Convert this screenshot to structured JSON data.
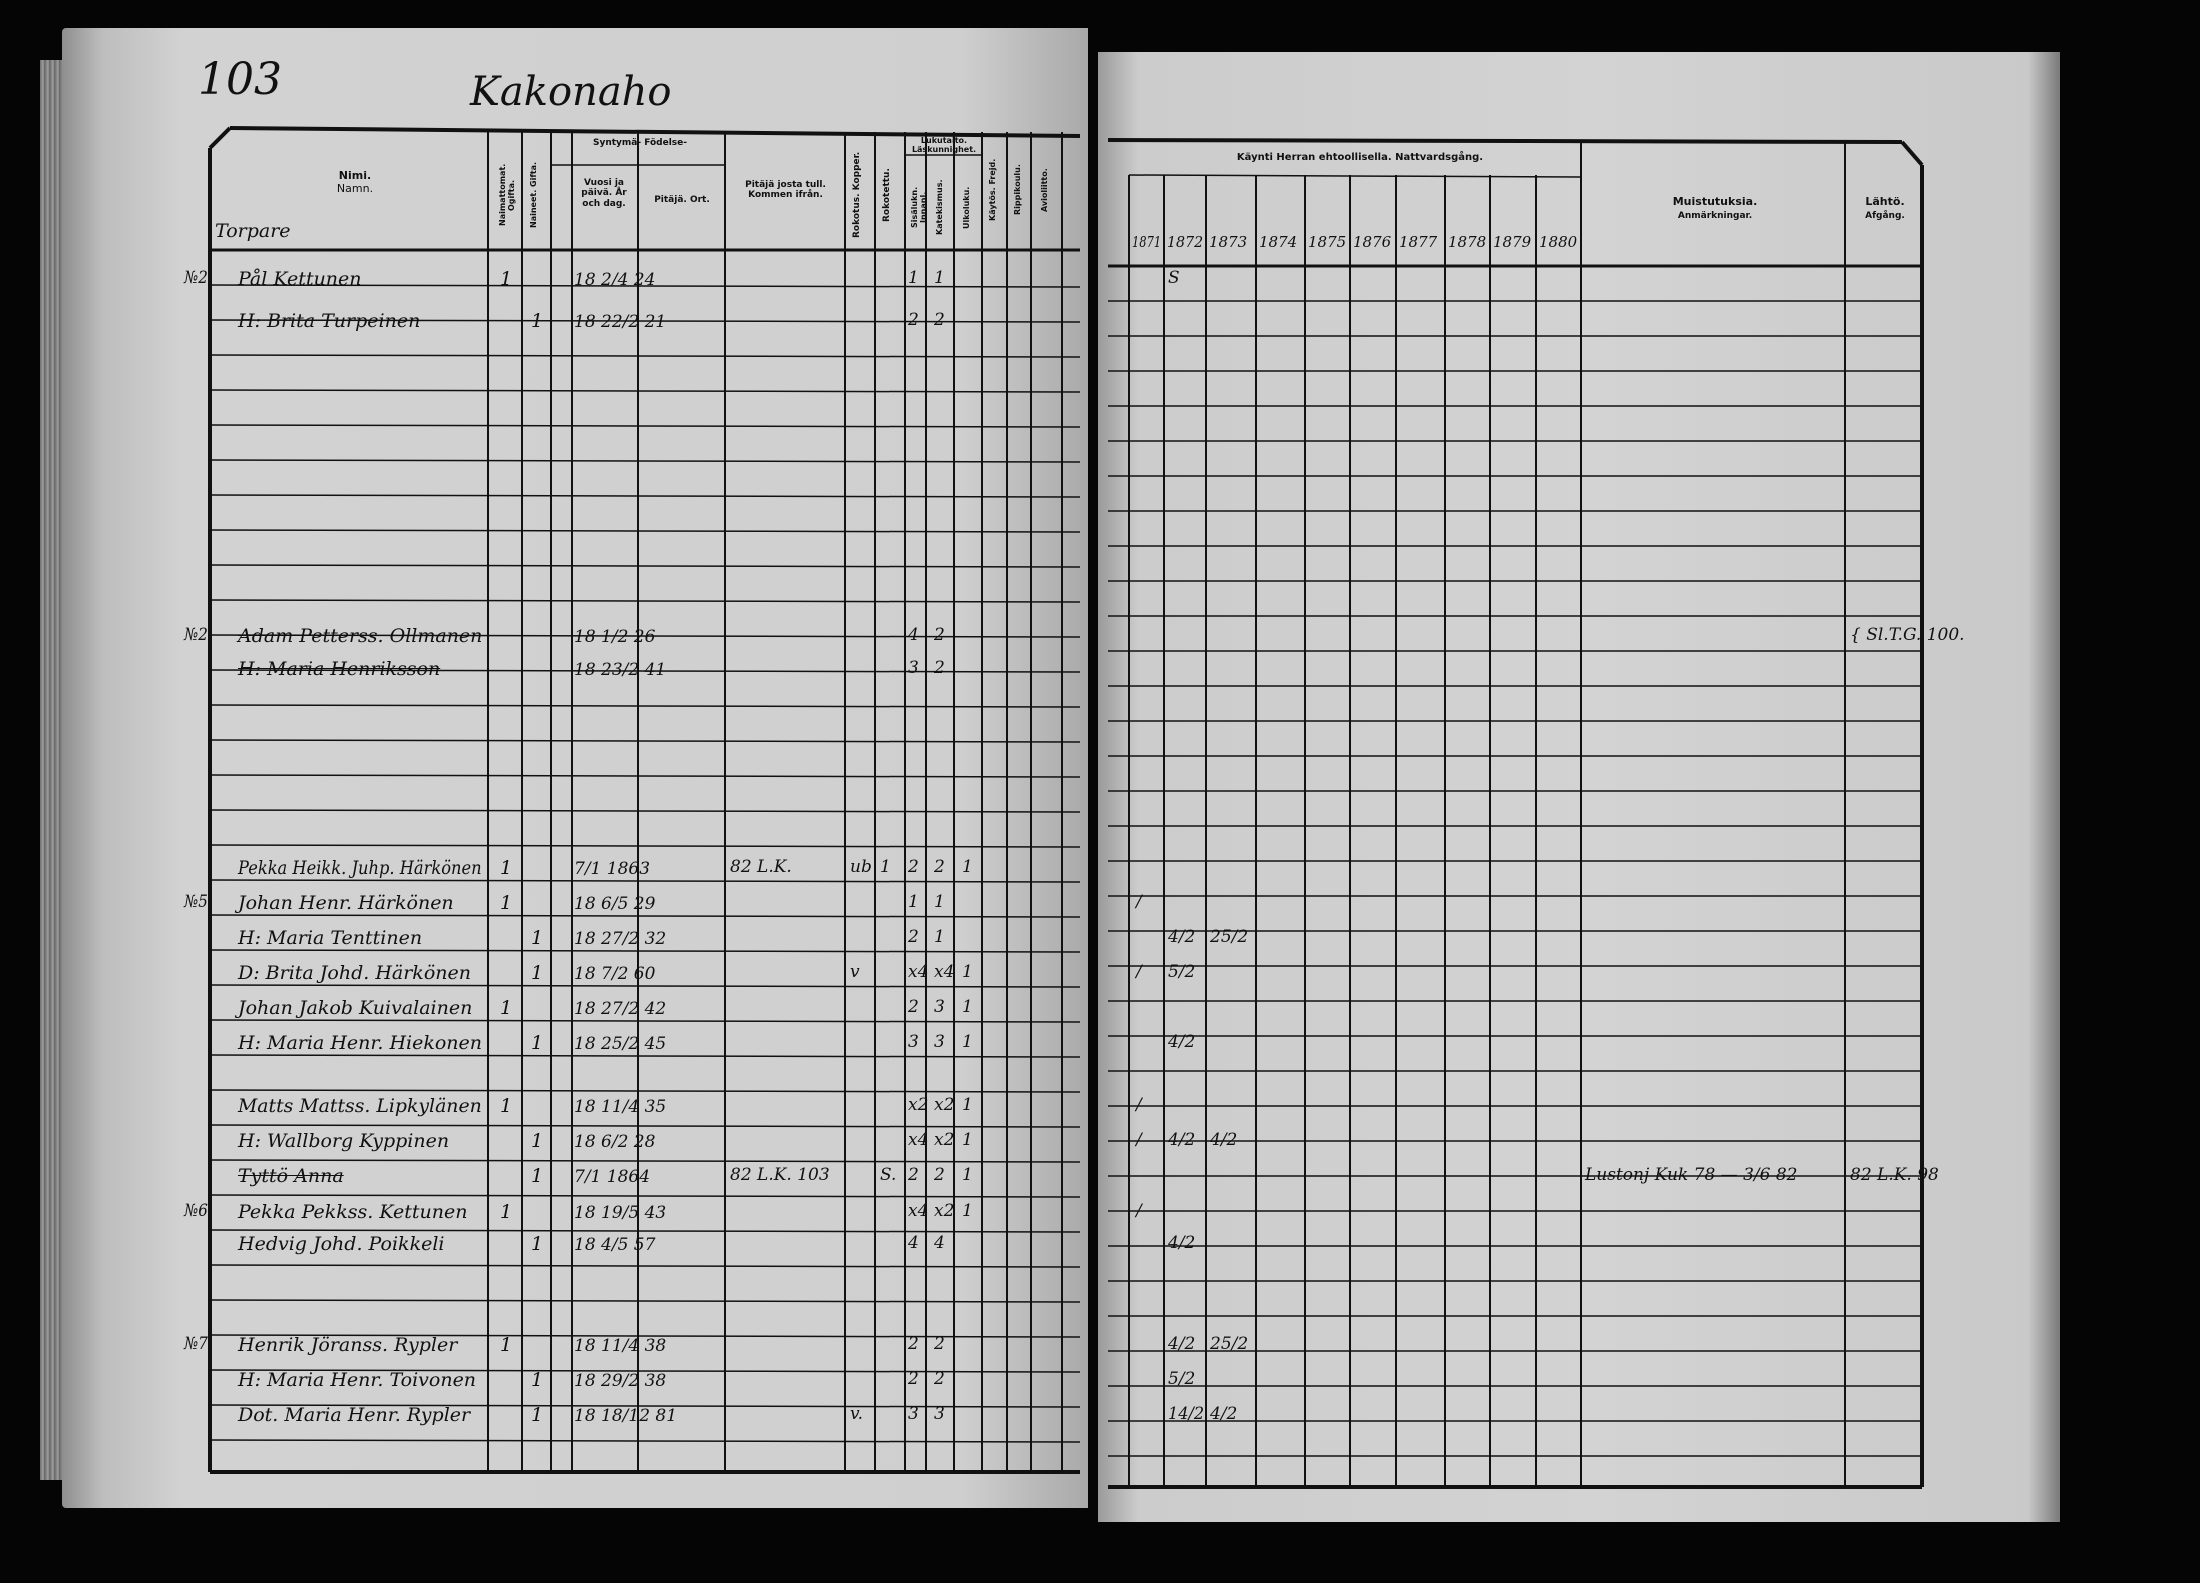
{
  "left_page": {
    "page_number": "103",
    "title": "Kakonaho",
    "section_label": "Torpare",
    "headers": {
      "name": "Nimi.",
      "name_sv": "Namn.",
      "unmarried": "Naimattomat. Ogifta.",
      "married": "Naineet. Gifta.",
      "birth_group": "Syntymä- Födelse-",
      "birth_date": "Vuosi ja päivä. År och dag.",
      "birth_place": "Pitäjä. Ort.",
      "came_from": "Pitäjä josta tull. Kommen ifrån.",
      "vaccinated": "Rokotus. Kopper.",
      "vaccine": "Rokotettu.",
      "literacy_group": "Lukutaito. Läskunnighet.",
      "literacy_inner": "Sisälukn. Innanl.",
      "literacy_cat": "Katekismus.",
      "literacy_outer": "Ulkoluku.",
      "conduct": "Käytös. Frejd.",
      "confirmed": "Rippikoulu.",
      "married_col": "Avioliitto."
    },
    "entries": [
      {
        "no": "№2",
        "name": "Pål Kettunen",
        "m1": "1",
        "m2": "",
        "birth": "18 2/4 24",
        "from": "",
        "v1": "",
        "v2": "",
        "r1": "1",
        "r2": "1",
        "r3": ""
      },
      {
        "no": "",
        "name": "H: Brita Turpeinen",
        "m1": "",
        "m2": "1",
        "birth": "18 22/2 21",
        "from": "",
        "v1": "",
        "v2": "",
        "r1": "2",
        "r2": "2",
        "r3": ""
      },
      {
        "no": "№2",
        "name": "Adam Petterss. Ollmanen",
        "m1": "",
        "m2": "",
        "birth": "18 1/2 26",
        "from": "",
        "v1": "",
        "v2": "",
        "r1": "4",
        "r2": "2",
        "r3": ""
      },
      {
        "no": "",
        "name": "H: Maria Henriksson",
        "m1": "",
        "m2": "",
        "birth": "18 23/2 41",
        "from": "",
        "v1": "",
        "v2": "",
        "r1": "3",
        "r2": "2",
        "r3": ""
      },
      {
        "no": "",
        "name": "Pekka Heikk. Juhp. Härkönen",
        "m1": "1",
        "m2": "",
        "birth": "7/1 1863",
        "from": "82 L.K.",
        "v1": "ub",
        "v2": "1",
        "r1": "2",
        "r2": "2",
        "r3": "1"
      },
      {
        "no": "№5",
        "name": "Johan Henr. Härkönen",
        "m1": "1",
        "m2": "",
        "birth": "18 6/5 29",
        "from": "",
        "v1": "",
        "v2": "",
        "r1": "1",
        "r2": "1",
        "r3": ""
      },
      {
        "no": "",
        "name": "H: Maria Tenttinen",
        "m1": "",
        "m2": "1",
        "birth": "18 27/2 32",
        "from": "",
        "v1": "",
        "v2": "",
        "r1": "2",
        "r2": "1",
        "r3": ""
      },
      {
        "no": "",
        "name": "D: Brita Johd. Härkönen",
        "m1": "",
        "m2": "1",
        "birth": "18 7/2 60",
        "from": "",
        "v1": "v",
        "v2": "",
        "r1": "x4",
        "r2": "x4",
        "r3": "1"
      },
      {
        "no": "",
        "name": "Johan Jakob Kuivalainen",
        "m1": "1",
        "m2": "",
        "birth": "18 27/2 42",
        "from": "",
        "v1": "",
        "v2": "",
        "r1": "2",
        "r2": "3",
        "r3": "1"
      },
      {
        "no": "",
        "name": "H: Maria Henr. Hiekonen",
        "m1": "",
        "m2": "1",
        "birth": "18 25/2 45",
        "from": "",
        "v1": "",
        "v2": "",
        "r1": "3",
        "r2": "3",
        "r3": "1"
      },
      {
        "no": "",
        "name": "Matts Mattss. Lipkylänen",
        "m1": "1",
        "m2": "",
        "birth": "18 11/4 35",
        "from": "",
        "v1": "",
        "v2": "",
        "r1": "x2",
        "r2": "x2",
        "r3": "1"
      },
      {
        "no": "",
        "name": "H: Wallborg Kyppinen",
        "m1": "",
        "m2": "1",
        "birth": "18 6/2 28",
        "from": "",
        "v1": "",
        "v2": "",
        "r1": "x4",
        "r2": "x2",
        "r3": "1"
      },
      {
        "no": "",
        "name": "Tyttö Anna",
        "m1": "",
        "m2": "1",
        "birth": "7/1 1864",
        "from": "82 L.K. 103",
        "v1": "",
        "v2": "S.",
        "r1": "2",
        "r2": "2",
        "r3": "1"
      },
      {
        "no": "№6",
        "name": "Pekka Pekkss. Kettunen",
        "m1": "1",
        "m2": "",
        "birth": "18 19/5 43",
        "from": "",
        "v1": "",
        "v2": "",
        "r1": "x4",
        "r2": "x2",
        "r3": "1"
      },
      {
        "no": "",
        "name": "Hedvig Johd. Poikkeli",
        "m1": "",
        "m2": "1",
        "birth": "18 4/5 57",
        "from": "",
        "v1": "",
        "v2": "",
        "r1": "4",
        "r2": "4",
        "r3": ""
      },
      {
        "no": "№7",
        "name": "Henrik Jöranss. Rypler",
        "m1": "1",
        "m2": "",
        "birth": "18 11/4 38",
        "from": "",
        "v1": "",
        "v2": "",
        "r1": "2",
        "r2": "2",
        "r3": ""
      },
      {
        "no": "",
        "name": "H: Maria Henr. Toivonen",
        "m1": "",
        "m2": "1",
        "birth": "18 29/2 38",
        "from": "",
        "v1": "",
        "v2": "",
        "r1": "2",
        "r2": "2",
        "r3": ""
      },
      {
        "no": "",
        "name": "Dot. Maria Henr. Rypler",
        "m1": "",
        "m2": "1",
        "birth": "18 18/12 81",
        "from": "",
        "v1": "v.",
        "v2": "",
        "r1": "3",
        "r2": "3",
        "r3": ""
      }
    ]
  },
  "right_page": {
    "headers": {
      "communion": "Käynti Herran ehtoollisella. Nattvardsgång.",
      "remarks": "Muistutuksia.",
      "remarks_sv": "Anmärkningar.",
      "departure": "Lähtö.",
      "departure_sv": "Afgång."
    },
    "years": [
      "1871",
      "1872",
      "1873",
      "1874",
      "1875",
      "1876",
      "1877",
      "1878",
      "1879",
      "1880"
    ],
    "marks": [
      {
        "c1871": "",
        "c1872": "S",
        "c1873": "",
        "remark": "",
        "departure": ""
      },
      {
        "c1871": "",
        "c1872": "",
        "c1873": "",
        "remark": "",
        "departure": ""
      },
      {
        "c1871": "",
        "c1872": "",
        "c1873": "",
        "remark": "",
        "departure": "{ Sl.T.G. 100."
      },
      {
        "c1871": "",
        "c1872": "",
        "c1873": "",
        "remark": "",
        "departure": ""
      },
      {
        "c1871": "",
        "c1872": "",
        "c1873": "",
        "remark": "",
        "departure": ""
      },
      {
        "c1871": "/",
        "c1872": "",
        "c1873": "",
        "remark": "",
        "departure": ""
      },
      {
        "c1871": "",
        "c1872": "4/2",
        "c1873": "25/2",
        "remark": "",
        "departure": ""
      },
      {
        "c1871": "/",
        "c1872": "5/2",
        "c1873": "",
        "remark": "",
        "departure": ""
      },
      {
        "c1871": "",
        "c1872": "",
        "c1873": "",
        "remark": "",
        "departure": ""
      },
      {
        "c1871": "",
        "c1872": "4/2",
        "c1873": "",
        "remark": "",
        "departure": ""
      },
      {
        "c1871": "/",
        "c1872": "",
        "c1873": "",
        "remark": "",
        "departure": ""
      },
      {
        "c1871": "/",
        "c1872": "4/2",
        "c1873": "4/2",
        "remark": "",
        "departure": ""
      },
      {
        "c1871": "",
        "c1872": "",
        "c1873": "",
        "remark": "Lustonj Kuk 78 — 3/6 82",
        "departure": "82 L.K. 98"
      },
      {
        "c1871": "/",
        "c1872": "",
        "c1873": "",
        "remark": "",
        "departure": ""
      },
      {
        "c1871": "",
        "c1872": "4/2",
        "c1873": "",
        "remark": "",
        "departure": ""
      },
      {
        "c1871": "",
        "c1872": "4/2",
        "c1873": "25/2",
        "remark": "",
        "departure": ""
      },
      {
        "c1871": "",
        "c1872": "5/2",
        "c1873": "",
        "remark": "",
        "departure": ""
      },
      {
        "c1871": "",
        "c1872": "14/2",
        "c1873": "4/2",
        "remark": "",
        "departure": ""
      }
    ]
  },
  "colors": {
    "paper": "#cdcdcd",
    "ink": "#111111",
    "background": "#050505"
  }
}
